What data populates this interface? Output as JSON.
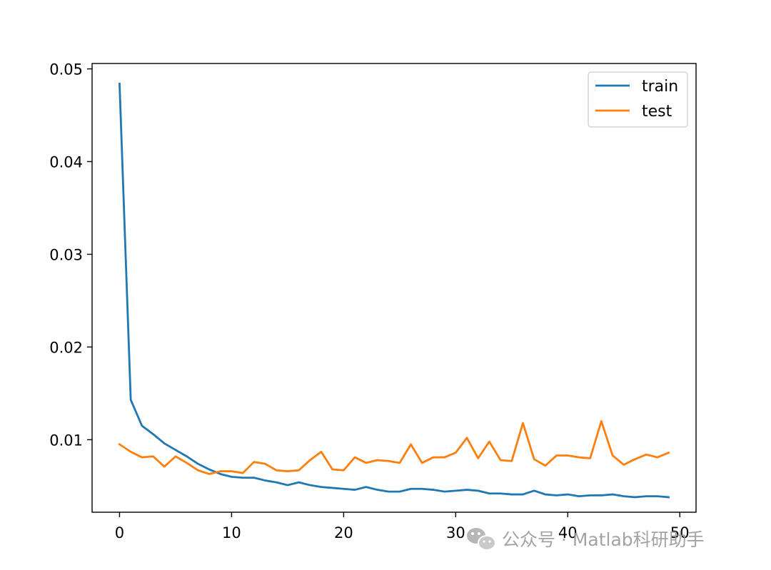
{
  "chart_data": {
    "type": "line",
    "title": "",
    "xlabel": "",
    "ylabel": "",
    "xlim": [
      -2.45,
      51.45
    ],
    "ylim": [
      0.00218,
      0.05058
    ],
    "grid": false,
    "legend_position": "top-right",
    "x_ticks": [
      0,
      10,
      20,
      30,
      40,
      50
    ],
    "y_ticks": [
      0.01,
      0.02,
      0.03,
      0.04,
      0.05
    ],
    "x_tick_labels": [
      "0",
      "10",
      "20",
      "30",
      "40",
      "50"
    ],
    "y_tick_labels": [
      "0.01",
      "0.02",
      "0.03",
      "0.04",
      "0.05"
    ],
    "x": [
      0,
      1,
      2,
      3,
      4,
      5,
      6,
      7,
      8,
      9,
      10,
      11,
      12,
      13,
      14,
      15,
      16,
      17,
      18,
      19,
      20,
      21,
      22,
      23,
      24,
      25,
      26,
      27,
      28,
      29,
      30,
      31,
      32,
      33,
      34,
      35,
      36,
      37,
      38,
      39,
      40,
      41,
      42,
      43,
      44,
      45,
      46,
      47,
      48,
      49
    ],
    "series": [
      {
        "name": "train",
        "color": "#1f77b4",
        "values": [
          0.0484,
          0.0143,
          0.0115,
          0.0106,
          0.0096,
          0.0089,
          0.0082,
          0.0074,
          0.0068,
          0.0063,
          0.006,
          0.0059,
          0.0059,
          0.0056,
          0.0054,
          0.0051,
          0.0054,
          0.0051,
          0.0049,
          0.0048,
          0.0047,
          0.0046,
          0.0049,
          0.0046,
          0.0044,
          0.0044,
          0.0047,
          0.0047,
          0.0046,
          0.0044,
          0.0045,
          0.0046,
          0.0045,
          0.0042,
          0.0042,
          0.0041,
          0.0041,
          0.0045,
          0.0041,
          0.004,
          0.0041,
          0.0039,
          0.004,
          0.004,
          0.0041,
          0.0039,
          0.0038,
          0.0039,
          0.0039,
          0.0038
        ]
      },
      {
        "name": "test",
        "color": "#ff7f0e",
        "values": [
          0.0095,
          0.0087,
          0.0081,
          0.0082,
          0.0071,
          0.0082,
          0.0075,
          0.0067,
          0.0063,
          0.0066,
          0.0066,
          0.0064,
          0.0076,
          0.0074,
          0.0067,
          0.0066,
          0.0067,
          0.0078,
          0.0087,
          0.0068,
          0.0067,
          0.0081,
          0.0075,
          0.0078,
          0.0077,
          0.0075,
          0.0095,
          0.0075,
          0.0081,
          0.0081,
          0.0086,
          0.0102,
          0.008,
          0.0098,
          0.0078,
          0.0077,
          0.0118,
          0.0079,
          0.0072,
          0.0083,
          0.0083,
          0.0081,
          0.008,
          0.012,
          0.0083,
          0.0073,
          0.0079,
          0.0084,
          0.0081,
          0.0086
        ]
      }
    ]
  },
  "watermark": {
    "icon": "wechat-icon",
    "text": "公众号 · Matlab科研助手"
  }
}
